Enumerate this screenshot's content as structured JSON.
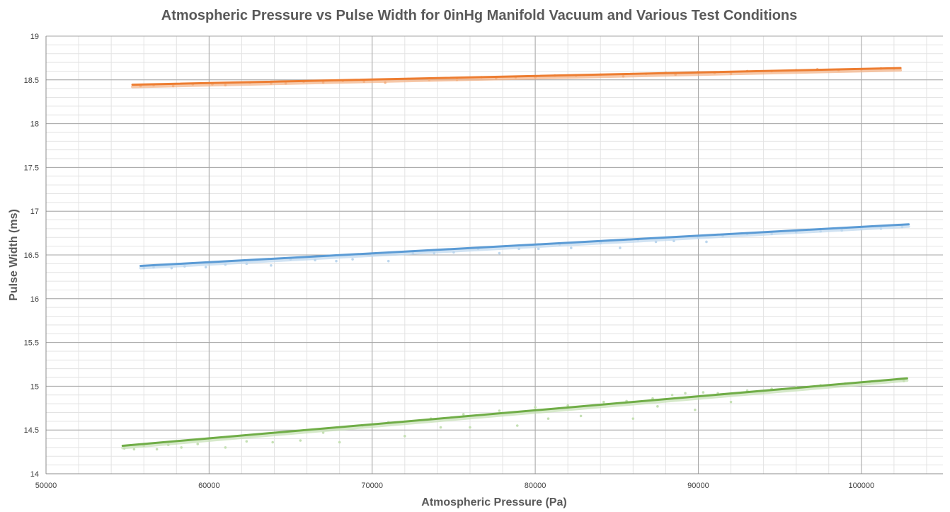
{
  "chart_data": {
    "type": "scatter",
    "title": "Atmospheric Pressure vs Pulse Width for 0inHg Manifold Vacuum and Various Test Conditions",
    "xlabel": "Atmospheric Pressure (Pa)",
    "ylabel": "Pulse Width (ms)",
    "xlim": [
      50000,
      105000
    ],
    "ylim": [
      14,
      19
    ],
    "x_major_ticks": [
      50000,
      60000,
      70000,
      80000,
      90000,
      100000
    ],
    "x_minor_step": 2000,
    "y_major_ticks": [
      14,
      14.5,
      15,
      15.5,
      16,
      16.5,
      17,
      17.5,
      18,
      18.5,
      19
    ],
    "y_minor_step": 0.1,
    "grid": true,
    "legend": "none",
    "series": [
      {
        "color": "#ED7D31",
        "marker_color": "#F4B183",
        "trendline": {
          "x": [
            55300,
            102400
          ],
          "y": [
            18.445,
            18.635
          ]
        },
        "points": {
          "x": [
            55800,
            56600,
            57800,
            59000,
            60200,
            61000,
            62500,
            63800,
            64700,
            65800,
            67000,
            68200,
            69500,
            70800,
            72200,
            73500,
            75200,
            76700,
            77600,
            78800,
            80000,
            81200,
            82500,
            84000,
            85400,
            86800,
            88000,
            88600,
            90000,
            91000,
            92000,
            93000,
            94500,
            96000,
            97300,
            98600,
            100000,
            101200,
            102000
          ],
          "y": [
            18.43,
            18.44,
            18.43,
            18.45,
            18.45,
            18.44,
            18.47,
            18.46,
            18.46,
            18.48,
            18.47,
            18.49,
            18.48,
            18.47,
            18.51,
            18.5,
            18.5,
            18.53,
            18.52,
            18.53,
            18.53,
            18.55,
            18.55,
            18.56,
            18.54,
            18.57,
            18.58,
            18.56,
            18.59,
            18.58,
            18.57,
            18.6,
            18.6,
            18.61,
            18.62,
            18.61,
            18.62,
            18.63,
            18.63
          ]
        }
      },
      {
        "color": "#5B9BD5",
        "marker_color": "#BDD7EE",
        "trendline": {
          "x": [
            55800,
            102900
          ],
          "y": [
            16.375,
            16.85
          ]
        },
        "points": {
          "x": [
            56000,
            56600,
            57700,
            58500,
            59800,
            61000,
            62300,
            63800,
            65000,
            66500,
            67800,
            68800,
            70000,
            71000,
            72500,
            73800,
            75000,
            76500,
            77800,
            79000,
            80200,
            81500,
            82200,
            84000,
            85200,
            86300,
            87400,
            88500,
            90000,
            90500,
            91500,
            93000,
            94500,
            96000,
            97500,
            98800,
            100000,
            101200,
            102500
          ],
          "y": [
            16.35,
            16.36,
            16.35,
            16.37,
            16.36,
            16.39,
            16.4,
            16.38,
            16.45,
            16.44,
            16.43,
            16.45,
            16.5,
            16.43,
            16.52,
            16.52,
            16.53,
            16.57,
            16.52,
            16.57,
            16.57,
            16.62,
            16.58,
            16.64,
            16.58,
            16.67,
            16.65,
            16.66,
            16.7,
            16.65,
            16.72,
            16.74,
            16.74,
            16.76,
            16.77,
            16.78,
            16.8,
            16.8,
            16.82
          ]
        }
      },
      {
        "color": "#70AD47",
        "marker_color": "#C5E0B4",
        "trendline": {
          "x": [
            54700,
            102800
          ],
          "y": [
            14.32,
            15.09
          ]
        },
        "points": {
          "x": [
            54800,
            55400,
            56000,
            56800,
            57500,
            58300,
            59300,
            60000,
            61000,
            62300,
            63900,
            65600,
            67000,
            68000,
            69400,
            71000,
            72000,
            73600,
            74200,
            75600,
            76000,
            77800,
            78900,
            80000,
            80800,
            82000,
            82800,
            84200,
            85600,
            86000,
            87200,
            87500,
            88400,
            89200,
            89800,
            90300,
            91200,
            92000,
            93000,
            94500,
            96000,
            97500,
            99000,
            100500,
            101800,
            102600
          ],
          "y": [
            14.29,
            14.28,
            14.32,
            14.28,
            14.33,
            14.3,
            14.34,
            14.4,
            14.3,
            14.37,
            14.36,
            14.38,
            14.47,
            14.36,
            14.55,
            14.59,
            14.43,
            14.63,
            14.53,
            14.68,
            14.53,
            14.72,
            14.55,
            14.76,
            14.63,
            14.78,
            14.66,
            14.82,
            14.83,
            14.63,
            14.86,
            14.77,
            14.9,
            14.92,
            14.73,
            14.93,
            14.92,
            14.82,
            14.95,
            14.97,
            14.99,
            15.01,
            15.03,
            15.05,
            15.07,
            15.06
          ]
        }
      }
    ]
  }
}
